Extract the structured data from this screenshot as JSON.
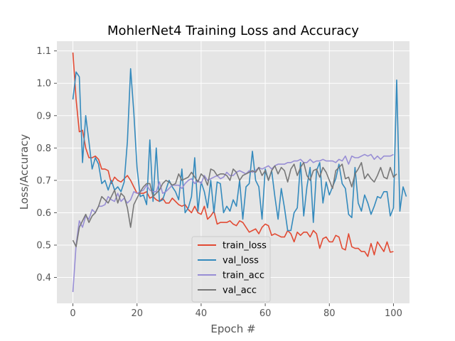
{
  "chart_data": {
    "type": "line",
    "title": "MohlerNet4 Training Loss and Accuracy",
    "xlabel": "Epoch #",
    "ylabel": "Loss/Accuracy",
    "xlim": [
      -5,
      105
    ],
    "ylim": [
      0.32,
      1.13
    ],
    "xticks": [
      0,
      20,
      40,
      60,
      80,
      100
    ],
    "yticks": [
      0.4,
      0.5,
      0.6,
      0.7,
      0.8,
      0.9,
      1.0,
      1.1
    ],
    "xtick_labels": [
      "0",
      "20",
      "40",
      "60",
      "80",
      "100"
    ],
    "ytick_labels": [
      "0.4",
      "0.5",
      "0.6",
      "0.7",
      "0.8",
      "0.9",
      "1.0",
      "1.1"
    ],
    "grid": true,
    "legend_position": "lower-center",
    "background": "#e5e5e5",
    "series": [
      {
        "name": "train_loss",
        "color": "#e24a33",
        "values": [
          1.095,
          0.95,
          0.85,
          0.855,
          0.8,
          0.77,
          0.77,
          0.775,
          0.765,
          0.735,
          0.735,
          0.73,
          0.69,
          0.71,
          0.7,
          0.695,
          0.705,
          0.715,
          0.7,
          0.68,
          0.66,
          0.66,
          0.66,
          0.665,
          0.645,
          0.65,
          0.64,
          0.635,
          0.645,
          0.63,
          0.63,
          0.645,
          0.635,
          0.625,
          0.62,
          0.625,
          0.61,
          0.6,
          0.62,
          0.6,
          0.595,
          0.62,
          0.58,
          0.59,
          0.605,
          0.565,
          0.57,
          0.57,
          0.57,
          0.575,
          0.565,
          0.56,
          0.575,
          0.57,
          0.555,
          0.54,
          0.545,
          0.55,
          0.535,
          0.555,
          0.565,
          0.56,
          0.53,
          0.535,
          0.53,
          0.525,
          0.525,
          0.545,
          0.535,
          0.51,
          0.54,
          0.53,
          0.54,
          0.54,
          0.525,
          0.545,
          0.535,
          0.49,
          0.52,
          0.525,
          0.51,
          0.51,
          0.53,
          0.525,
          0.49,
          0.485,
          0.535,
          0.495,
          0.49,
          0.49,
          0.48,
          0.48,
          0.465,
          0.505,
          0.47,
          0.51,
          0.495,
          0.48,
          0.51,
          0.478,
          0.48
        ]
      },
      {
        "name": "val_loss",
        "color": "#348abd",
        "values": [
          0.95,
          1.035,
          1.02,
          0.755,
          0.9,
          0.82,
          0.735,
          0.77,
          0.75,
          0.69,
          0.7,
          0.67,
          0.7,
          0.67,
          0.68,
          0.665,
          0.695,
          0.82,
          1.045,
          0.91,
          0.74,
          0.65,
          0.655,
          0.625,
          0.825,
          0.635,
          0.8,
          0.635,
          0.64,
          0.67,
          0.7,
          0.68,
          0.665,
          0.64,
          0.735,
          0.6,
          0.615,
          0.65,
          0.77,
          0.605,
          0.695,
          0.665,
          0.615,
          0.7,
          0.6,
          0.695,
          0.69,
          0.6,
          0.62,
          0.605,
          0.64,
          0.62,
          0.7,
          0.58,
          0.68,
          0.69,
          0.79,
          0.7,
          0.68,
          0.58,
          0.735,
          0.7,
          0.73,
          0.65,
          0.58,
          0.675,
          0.615,
          0.545,
          0.545,
          0.6,
          0.615,
          0.755,
          0.59,
          0.68,
          0.74,
          0.57,
          0.73,
          0.755,
          0.63,
          0.695,
          0.655,
          0.68,
          0.705,
          0.75,
          0.69,
          0.675,
          0.595,
          0.585,
          0.74,
          0.63,
          0.605,
          0.655,
          0.63,
          0.595,
          0.62,
          0.65,
          0.645,
          0.665,
          0.665,
          0.59,
          0.615,
          1.01,
          0.605,
          0.68,
          0.65
        ]
      },
      {
        "name": "train_acc",
        "color": "#988ed5",
        "values": [
          0.355,
          0.5,
          0.575,
          0.555,
          0.59,
          0.58,
          0.61,
          0.6,
          0.62,
          0.62,
          0.625,
          0.65,
          0.64,
          0.635,
          0.66,
          0.635,
          0.645,
          0.63,
          0.64,
          0.665,
          0.66,
          0.665,
          0.67,
          0.685,
          0.67,
          0.665,
          0.665,
          0.695,
          0.66,
          0.665,
          0.675,
          0.685,
          0.685,
          0.685,
          0.675,
          0.69,
          0.7,
          0.705,
          0.69,
          0.7,
          0.69,
          0.715,
          0.7,
          0.705,
          0.71,
          0.715,
          0.705,
          0.71,
          0.725,
          0.715,
          0.715,
          0.725,
          0.73,
          0.725,
          0.72,
          0.73,
          0.725,
          0.73,
          0.74,
          0.735,
          0.74,
          0.745,
          0.735,
          0.745,
          0.75,
          0.75,
          0.75,
          0.755,
          0.755,
          0.76,
          0.76,
          0.765,
          0.755,
          0.755,
          0.765,
          0.755,
          0.76,
          0.76,
          0.765,
          0.76,
          0.76,
          0.76,
          0.755,
          0.765,
          0.76,
          0.775,
          0.75,
          0.775,
          0.77,
          0.77,
          0.775,
          0.78,
          0.775,
          0.78,
          0.765,
          0.775,
          0.765,
          0.775,
          0.775,
          0.775,
          0.78
        ]
      },
      {
        "name": "val_acc",
        "color": "#777777",
        "values": [
          0.515,
          0.495,
          0.555,
          0.575,
          0.595,
          0.57,
          0.59,
          0.6,
          0.62,
          0.65,
          0.64,
          0.63,
          0.65,
          0.67,
          0.63,
          0.66,
          0.65,
          0.615,
          0.555,
          0.625,
          0.645,
          0.665,
          0.68,
          0.69,
          0.69,
          0.65,
          0.66,
          0.67,
          0.69,
          0.7,
          0.695,
          0.685,
          0.69,
          0.72,
          0.7,
          0.705,
          0.71,
          0.725,
          0.71,
          0.695,
          0.72,
          0.71,
          0.685,
          0.735,
          0.73,
          0.715,
          0.72,
          0.72,
          0.715,
          0.7,
          0.735,
          0.725,
          0.7,
          0.715,
          0.72,
          0.725,
          0.73,
          0.725,
          0.74,
          0.715,
          0.73,
          0.7,
          0.73,
          0.745,
          0.72,
          0.74,
          0.73,
          0.695,
          0.735,
          0.75,
          0.715,
          0.74,
          0.755,
          0.715,
          0.7,
          0.73,
          0.735,
          0.71,
          0.74,
          0.725,
          0.7,
          0.675,
          0.73,
          0.74,
          0.75,
          0.705,
          0.71,
          0.68,
          0.72,
          0.735,
          0.755,
          0.705,
          0.72,
          0.705,
          0.695,
          0.715,
          0.74,
          0.71,
          0.705,
          0.74,
          0.71,
          0.72
        ]
      }
    ]
  }
}
